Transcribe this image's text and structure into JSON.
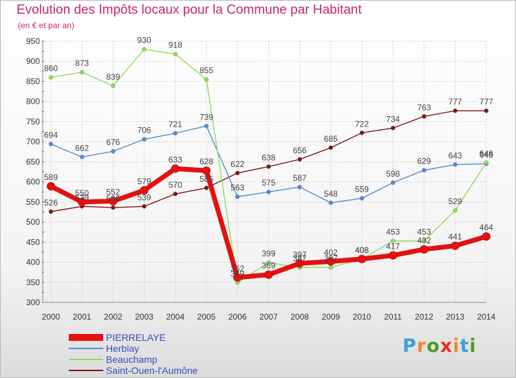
{
  "title": "Evolution des Impôts locaux pour la Commune par Habitant",
  "subtitle": "(en € et par an)",
  "logo": {
    "text": "Proxiti",
    "colors": [
      "#3aa0d8",
      "#f08a24",
      "#4b9a2a",
      "#e6331a",
      "#f08a24",
      "#3aa0d8",
      "#4b9a2a"
    ]
  },
  "colors": {
    "title": "#c8266e",
    "legend_text": "#3a4bb5",
    "grid": "#cfcfcf",
    "tick_marks": "#d01818"
  },
  "chart_data": {
    "type": "line",
    "title": "Evolution des Impôts locaux pour la Commune par Habitant",
    "subtitle": "(en € et par an)",
    "x": [
      "2000",
      "2001",
      "2002",
      "2003",
      "2004",
      "2005",
      "2006",
      "2007",
      "2008",
      "2009",
      "2010",
      "2011",
      "2012",
      "2013",
      "2014"
    ],
    "ylim": [
      300,
      950
    ],
    "yticks": [
      300,
      350,
      400,
      450,
      500,
      550,
      600,
      650,
      700,
      750,
      800,
      850,
      900,
      950
    ],
    "grid": true,
    "legend_position": "bottom-left",
    "series": [
      {
        "name": "Saint-Ouen-l'Aumône",
        "color": "#7a1a1a",
        "width": 1.4,
        "marker_r": 3,
        "values": [
          526,
          539,
          536,
          539,
          570,
          585,
          622,
          638,
          656,
          685,
          722,
          734,
          763,
          777,
          777
        ],
        "labels": [
          "526",
          "539",
          "536",
          "539",
          "570",
          "585",
          "622",
          "638",
          "656",
          "685",
          "722",
          "734",
          "763",
          "777",
          "777"
        ]
      },
      {
        "name": "Herblay",
        "color": "#4f8fcf",
        "width": 1.4,
        "marker_r": 3,
        "values": [
          694,
          662,
          676,
          706,
          721,
          739,
          563,
          575,
          587,
          548,
          559,
          598,
          629,
          643,
          645
        ],
        "labels": [
          "694",
          "662",
          "676",
          "706",
          "721",
          "739",
          "563",
          "575",
          "587",
          "548",
          "559",
          "598",
          "629",
          "643",
          "645"
        ]
      },
      {
        "name": "Beauchamp",
        "color": "#8fdc5a",
        "width": 1.4,
        "marker_r": 3,
        "values": [
          860,
          873,
          839,
          930,
          918,
          855,
          349,
          399,
          387,
          387,
          408,
          453,
          453,
          529,
          648
        ],
        "labels": [
          "860",
          "873",
          "839",
          "930",
          "918",
          "855",
          "349",
          "399",
          "387",
          "387",
          "408",
          "453",
          "453",
          "529",
          "648"
        ]
      },
      {
        "name": "PIERRELAYE",
        "color": "#e51010",
        "width": 7,
        "marker_r": 6,
        "values": [
          589,
          550,
          552,
          579,
          633,
          628,
          362,
          369,
          397,
          402,
          408,
          417,
          432,
          441,
          464
        ],
        "labels": [
          "589",
          "550",
          "552",
          "579",
          "633",
          "628",
          "362",
          "369",
          "397",
          "402",
          "408",
          "417",
          "432",
          "441",
          "464"
        ]
      }
    ],
    "legend_order": [
      "PIERRELAYE",
      "Herblay",
      "Beauchamp",
      "Saint-Ouen-l'Aumône"
    ]
  }
}
